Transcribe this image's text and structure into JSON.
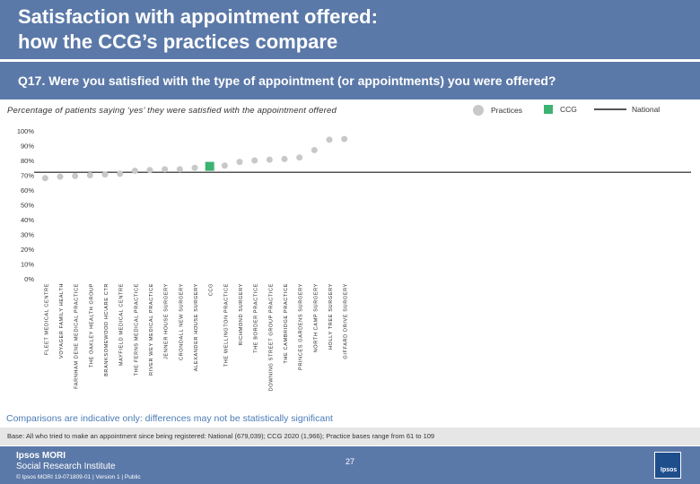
{
  "slide": {
    "title": "Satisfaction with appointment offered:\nhow the CCG’s practices compare",
    "question": "Q17. Were you satisfied with the type of appointment (or appointments) you were offered?",
    "subtitle": "Percentage of patients saying ‘yes’ they were satisfied with the appointment offered",
    "legend": {
      "practices": "Practices",
      "ccg": "CCG",
      "national": "National"
    },
    "comparisons_note": "Comparisons are indicative only: differences may not be statistically significant",
    "base_note": "Base: All who tried to make an appointment since being registered: National (679,039); CCG 2020 (1,966); Practice bases range from 61 to 109",
    "footer": {
      "logo_line1": "Ipsos MORI",
      "logo_line2": "Social Research Institute",
      "copyright": "© Ipsos MORI    19-071809-01 | Version 1 | Public",
      "page_number": "27",
      "brand": "Ipsos"
    }
  },
  "colors": {
    "header": "#5b79a8",
    "practice": "#c8c8c8",
    "ccg": "#3cb371",
    "national": "#555555",
    "note": "#4b7bb5"
  },
  "chart_data": {
    "type": "scatter",
    "ylim": [
      0,
      100
    ],
    "y_ticks": [
      "100%",
      "90%",
      "80%",
      "70%",
      "60%",
      "50%",
      "40%",
      "30%",
      "20%",
      "10%",
      "0%"
    ],
    "categories": [
      "FLEET MEDICAL CENTRE",
      "VOYAGER FAMILY HEALTH",
      "FARNHAM DENE MEDICAL PRACTICE",
      "THE OAKLEY HEALTH GROUP",
      "BRANKSOMEWOOD HC\\ARE CTR",
      "MAYFIELD MEDICAL CENTRE",
      "THE FERNS MEDICAL PRACTICE",
      "RIVER WEY MEDICAL PRACTICE",
      "JENNER HOUSE SURGERY",
      "CRONDALL NEW SURGERY",
      "ALEXANDER HOUSE SURGERY",
      "CCG",
      "THE WELLINGTON PRACTICE",
      "RICHMOND SURGERY",
      "THE BORDER PRACTICE",
      "DOWNING STREET GROUP PRACTICE",
      "THE CAMBRIDGE PRACTICE",
      "PRINCES GARDENS SURGERY",
      "NORTH CAMP SURGERY",
      "HOLLY TREE SURGERY",
      "GIFFARD DRIVE SURGERY"
    ],
    "series": [
      {
        "name": "Practices",
        "values": [
          68,
          69,
          69.5,
          70,
          70.5,
          71,
          73,
          73.5,
          74,
          74,
          75,
          76,
          76.5,
          79,
          80,
          80.5,
          81,
          82,
          87,
          94,
          94.5
        ],
        "ccg_index": 11
      }
    ],
    "ccg_value": 76,
    "national_value": 72
  }
}
